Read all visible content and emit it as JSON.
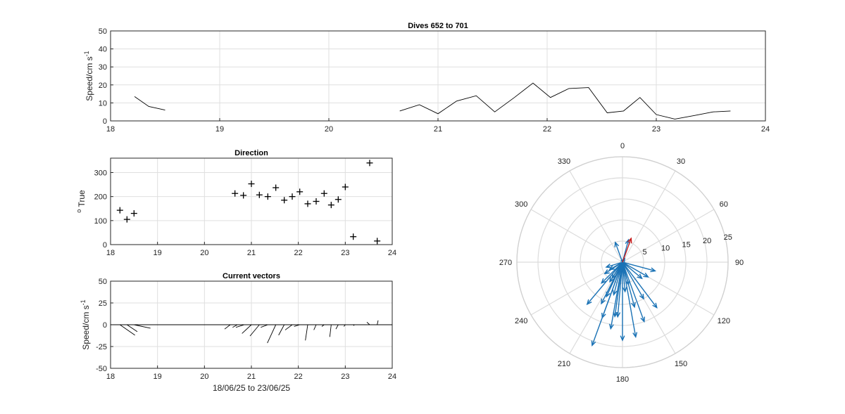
{
  "chart_data": [
    {
      "type": "line",
      "title": "Dives 652 to 701",
      "ylabel": "Speed/cm s",
      "ylabel_exp": "-1",
      "xlim": [
        18,
        24
      ],
      "ylim": [
        0,
        50
      ],
      "xticks": [
        "18",
        "19",
        "20",
        "21",
        "22",
        "23",
        "24"
      ],
      "yticks": [
        "0",
        "10",
        "20",
        "30",
        "40",
        "50"
      ],
      "grid": true,
      "series": [
        {
          "x": [
            18.22,
            18.35,
            18.5
          ],
          "y": [
            13.5,
            8,
            6
          ]
        },
        {
          "x": [
            20.65,
            20.83,
            21.0,
            21.17,
            21.35,
            21.52,
            21.7,
            21.87,
            22.03,
            22.2,
            22.38,
            22.55,
            22.7,
            22.85,
            23.0,
            23.17,
            23.35,
            23.52,
            23.68
          ],
          "y": [
            5.5,
            9,
            4,
            11,
            14,
            5,
            13,
            21,
            13,
            18,
            18.5,
            4.5,
            5.5,
            13,
            3.5,
            1,
            3,
            5,
            5.5
          ]
        }
      ]
    },
    {
      "type": "scatter",
      "title": "Direction",
      "ylabel": "True",
      "ylabel_prefix": "o",
      "xlim": [
        18,
        24
      ],
      "ylim": [
        0,
        360
      ],
      "xticks": [
        "18",
        "19",
        "20",
        "21",
        "22",
        "23",
        "24"
      ],
      "yticks": [
        "0",
        "100",
        "200",
        "300"
      ],
      "grid": true,
      "x": [
        18.2,
        18.35,
        18.5,
        20.65,
        20.83,
        21.0,
        21.17,
        21.35,
        21.52,
        21.7,
        21.87,
        22.03,
        22.2,
        22.38,
        22.55,
        22.7,
        22.85,
        23.0,
        23.17,
        23.52,
        23.68
      ],
      "y": [
        143,
        105,
        130,
        213,
        205,
        253,
        207,
        200,
        237,
        185,
        200,
        220,
        170,
        180,
        213,
        165,
        188,
        240,
        33,
        340,
        15
      ]
    },
    {
      "type": "line",
      "title": "Current vectors",
      "ylabel": "Speed/cm s",
      "ylabel_exp": "-1",
      "xlabel": "18/06/25 to 23/06/25",
      "xlim": [
        18,
        24
      ],
      "ylim": [
        -50,
        50
      ],
      "xticks": [
        "18",
        "19",
        "20",
        "21",
        "22",
        "23",
        "24"
      ],
      "yticks": [
        "-50",
        "-25",
        "0",
        "25",
        "50"
      ],
      "grid": true,
      "stick_origin_x": [
        18.2,
        18.35,
        18.5,
        20.55,
        20.7,
        20.85,
        21.0,
        21.17,
        21.35,
        21.52,
        21.7,
        21.87,
        22.03,
        22.2,
        22.38,
        22.55,
        22.7,
        22.85,
        23.0,
        23.17,
        23.52,
        23.68
      ],
      "stick_u": [
        0.32,
        0.22,
        0.35,
        -0.12,
        -0.1,
        -0.18,
        -0.2,
        -0.2,
        -0.15,
        -0.18,
        -0.12,
        -0.15,
        -0.12,
        -0.05,
        -0.05,
        -0.05,
        -0.03,
        -0.05,
        -0.03,
        0.02,
        -0.06,
        0.02
      ],
      "stick_v": [
        -12,
        -8,
        -4,
        -5,
        -3,
        -3,
        -10,
        -13,
        -3,
        -21,
        -12,
        -6,
        -2,
        -18,
        -6,
        -2,
        -14,
        -5,
        -2,
        -1,
        3,
        5
      ]
    },
    {
      "type": "polar",
      "angle_ticks": [
        "0",
        "30",
        "60",
        "90",
        "120",
        "150",
        "180",
        "210",
        "240",
        "270",
        "300",
        "330"
      ],
      "radial_ticks": [
        "5",
        "10",
        "15",
        "20",
        "25"
      ],
      "rmax": 25,
      "mean_vector": {
        "dir": 20,
        "speed": 6,
        "color": "#c81e1e"
      },
      "vectors_color": "#1a72b5",
      "vectors": [
        {
          "dir": 143,
          "speed": 13.5
        },
        {
          "dir": 105,
          "speed": 8
        },
        {
          "dir": 130,
          "speed": 6
        },
        {
          "dir": 213,
          "speed": 5.5
        },
        {
          "dir": 205,
          "speed": 9
        },
        {
          "dir": 253,
          "speed": 4
        },
        {
          "dir": 207,
          "speed": 11
        },
        {
          "dir": 200,
          "speed": 14
        },
        {
          "dir": 237,
          "speed": 5
        },
        {
          "dir": 185,
          "speed": 13
        },
        {
          "dir": 200,
          "speed": 21
        },
        {
          "dir": 220,
          "speed": 13
        },
        {
          "dir": 170,
          "speed": 18
        },
        {
          "dir": 180,
          "speed": 18.5
        },
        {
          "dir": 213,
          "speed": 4.5
        },
        {
          "dir": 165,
          "speed": 5.5
        },
        {
          "dir": 188,
          "speed": 13
        },
        {
          "dir": 240,
          "speed": 3.5
        },
        {
          "dir": 33,
          "speed": 1
        },
        {
          "dir": 340,
          "speed": 5
        },
        {
          "dir": 15,
          "speed": 5.5
        },
        {
          "dir": 160,
          "speed": 15
        },
        {
          "dir": 195,
          "speed": 8
        },
        {
          "dir": 150,
          "speed": 10
        },
        {
          "dir": 120,
          "speed": 7
        },
        {
          "dir": 175,
          "speed": 7
        },
        {
          "dir": 225,
          "speed": 7
        },
        {
          "dir": 190,
          "speed": 16
        },
        {
          "dir": 165,
          "speed": 11
        }
      ]
    }
  ]
}
